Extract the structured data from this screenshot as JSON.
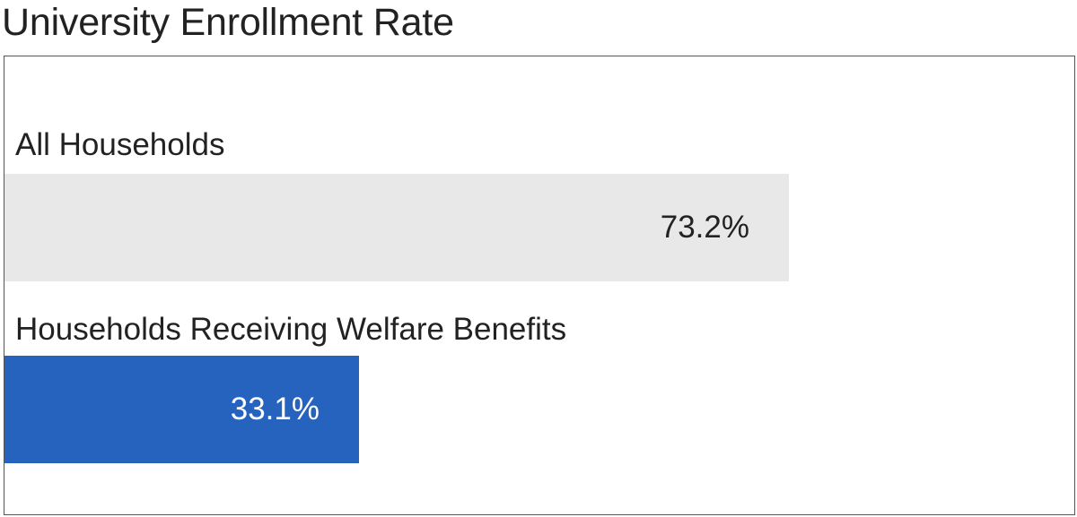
{
  "chart_data": {
    "type": "bar",
    "orientation": "horizontal",
    "title": "University Enrollment Rate",
    "categories": [
      "All Households",
      "Households Receiving Welfare Benefits"
    ],
    "values": [
      73.2,
      33.1
    ],
    "value_labels": [
      "73.2%",
      "33.1%"
    ],
    "unit": "%",
    "xlim": [
      0,
      100
    ],
    "grid": false,
    "colors": [
      "#e8e8e8",
      "#2563be"
    ],
    "label_colors": [
      "#222222",
      "#ffffff"
    ]
  }
}
